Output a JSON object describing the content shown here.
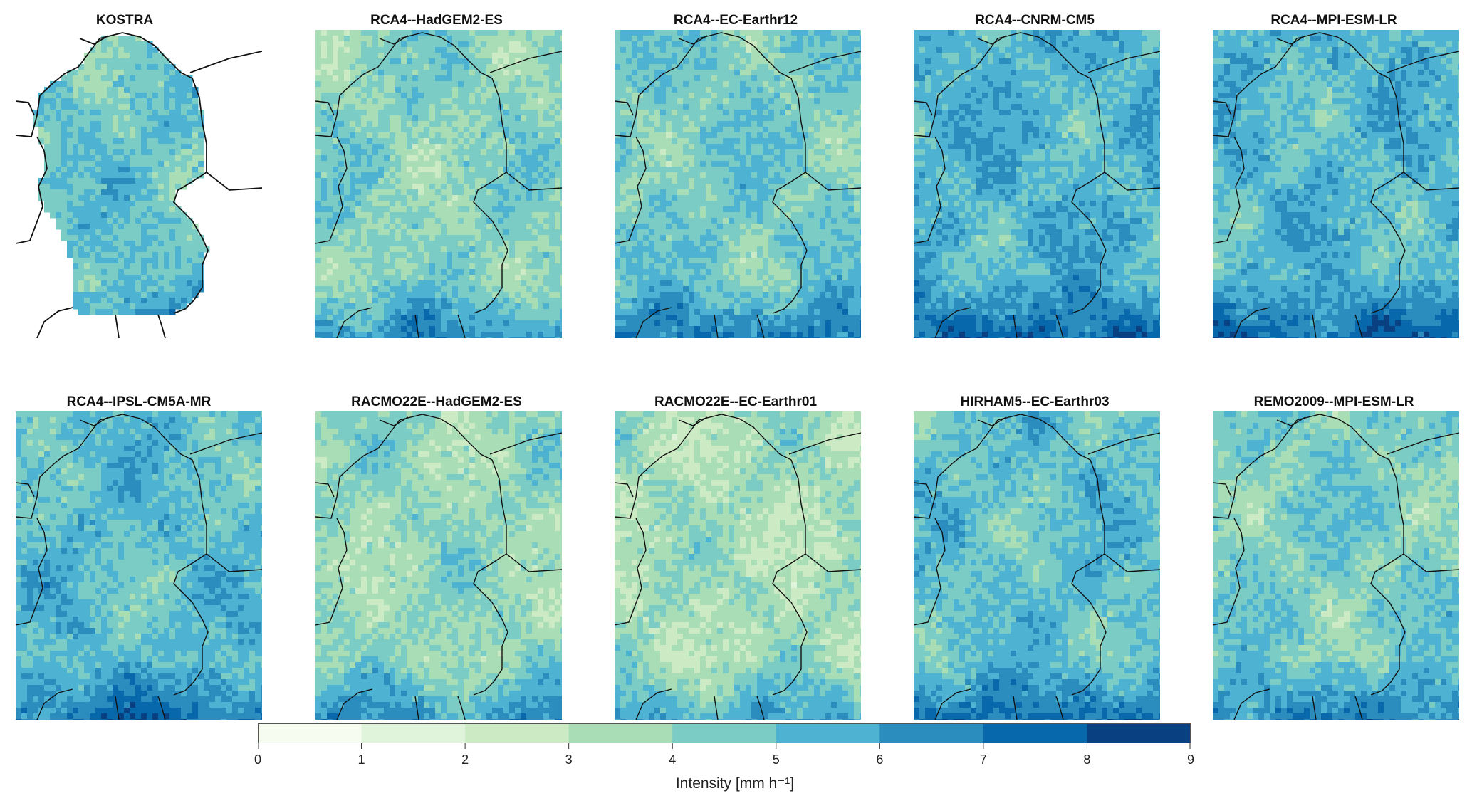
{
  "panels": [
    {
      "title": "KOSTRA",
      "mean_intensity": 4.8
    },
    {
      "title": "RCA4--HadGEM2-ES",
      "mean_intensity": 4.2
    },
    {
      "title": "RCA4--EC-Earthr12",
      "mean_intensity": 4.6
    },
    {
      "title": "RCA4--CNRM-CM5",
      "mean_intensity": 5.4
    },
    {
      "title": "RCA4--MPI-ESM-LR",
      "mean_intensity": 5.3
    },
    {
      "title": "RCA4--IPSL-CM5A-MR",
      "mean_intensity": 5.1
    },
    {
      "title": "RACMO22E--HadGEM2-ES",
      "mean_intensity": 3.9
    },
    {
      "title": "RACMO22E--EC-Earthr01",
      "mean_intensity": 3.5
    },
    {
      "title": "HIRHAM5--EC-Earthr03",
      "mean_intensity": 5.0
    },
    {
      "title": "REMO2009--MPI-ESM-LR",
      "mean_intensity": 4.5
    }
  ],
  "colorbar": {
    "label": "Intensity [mm h⁻¹]",
    "ticks": [
      "0",
      "1",
      "2",
      "3",
      "4",
      "5",
      "6",
      "7",
      "8",
      "9"
    ],
    "colors": [
      "#f7fcf0",
      "#e0f3db",
      "#ccebc5",
      "#a8ddb5",
      "#7bccc4",
      "#4eb3d3",
      "#2b8cbe",
      "#0868ac",
      "#084081"
    ]
  }
}
